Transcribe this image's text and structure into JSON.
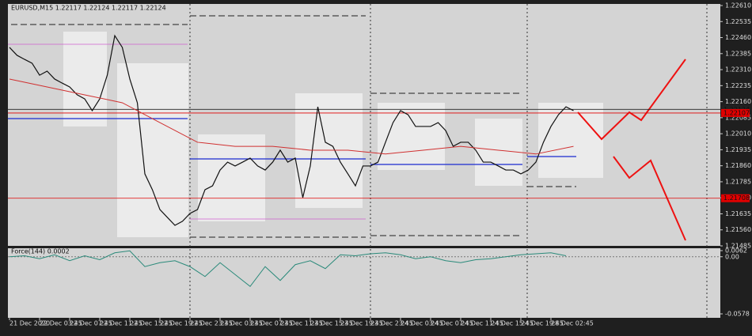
{
  "chart_data": [
    {
      "type": "line",
      "title": "EURUSD,M15  1.22117 1.22124 1.22117 1.22124",
      "xlim": [
        0,
        94
      ],
      "xticks": [
        {
          "value": 0,
          "label": "21 Dec 2020"
        },
        {
          "value": 4,
          "label": "22 Dec 03:45"
        },
        {
          "value": 8,
          "label": "22 Dec 07:45"
        },
        {
          "value": 12,
          "label": "22 Dec 11:45"
        },
        {
          "value": 16,
          "label": "22 Dec 15:45"
        },
        {
          "value": 20,
          "label": "22 Dec 19:45"
        },
        {
          "value": 24,
          "label": "22 Dec 23:45"
        },
        {
          "value": 28,
          "label": "23 Dec 03:45"
        },
        {
          "value": 32,
          "label": "23 Dec 07:45"
        },
        {
          "value": 36,
          "label": "23 Dec 11:45"
        },
        {
          "value": 40,
          "label": "23 Dec 15:45"
        },
        {
          "value": 44,
          "label": "23 Dec 19:45"
        },
        {
          "value": 48,
          "label": "23 Dec 23:45"
        },
        {
          "value": 52,
          "label": "24 Dec 03:45"
        },
        {
          "value": 56,
          "label": "24 Dec 07:45"
        },
        {
          "value": 60,
          "label": "24 Dec 11:45"
        },
        {
          "value": 64,
          "label": "24 Dec 15:45"
        },
        {
          "value": 68,
          "label": "24 Dec 19:45"
        },
        {
          "value": 72,
          "label": "28 Dec 02:45"
        }
      ],
      "ylim": [
        1.21485,
        1.2261
      ],
      "yticks": [
        {
          "value": 1.2261,
          "label": "1.22610"
        },
        1.22535,
        {
          "value": 1.2246,
          "label": "1.22460"
        },
        1.22385,
        {
          "value": 1.2231,
          "label": "1.22310"
        },
        1.22235,
        {
          "value": 1.2216,
          "label": "1.22160"
        },
        1.22085,
        {
          "value": 1.2201,
          "label": "1.22010"
        },
        1.21935,
        {
          "value": 1.2186,
          "label": "1.21860"
        },
        1.21785,
        {
          "value": 1.2171,
          "label": "1.21710"
        },
        1.21635,
        {
          "value": 1.2156,
          "label": "1.21560"
        },
        1.21485
      ],
      "hlines": [
        {
          "value": 1.22124,
          "color": "#222222"
        },
        {
          "value": 1.22107,
          "color": "#e00000"
        },
        {
          "value": 1.21708,
          "color": "#e00000"
        }
      ],
      "series": [
        {
          "name": "EURUSD",
          "color": "#111111",
          "x": [
            0,
            1,
            2,
            3,
            4,
            5,
            6,
            7,
            8,
            9,
            10,
            11,
            12,
            13,
            14,
            15,
            16,
            17,
            18,
            19,
            20,
            21,
            22,
            23,
            24,
            25,
            26,
            27,
            28,
            29,
            30,
            31,
            32,
            33,
            34,
            35,
            36,
            37,
            38,
            39,
            40,
            41,
            42,
            43,
            44,
            45,
            46,
            47,
            48,
            49,
            50,
            51,
            52,
            53,
            54,
            55,
            56,
            57,
            58,
            59,
            60,
            61,
            62,
            63,
            64,
            65,
            66,
            67,
            68,
            69,
            70,
            71,
            72,
            73,
            74,
            75
          ],
          "values": [
            1.22414,
            1.22377,
            1.22358,
            1.2234,
            1.22284,
            1.22303,
            1.22266,
            1.22247,
            1.22229,
            1.22192,
            1.22173,
            1.22118,
            1.22173,
            1.22284,
            1.22469,
            1.22414,
            1.22266,
            1.22155,
            1.21822,
            1.21748,
            1.21655,
            1.21618,
            1.21581,
            1.216,
            1.21637,
            1.21655,
            1.21748,
            1.21766,
            1.2184,
            1.21877,
            1.21859,
            1.21877,
            1.21896,
            1.21859,
            1.2184,
            1.21877,
            1.21933,
            1.21877,
            1.21896,
            1.21711,
            1.21859,
            1.22136,
            1.2197,
            1.21951,
            1.21877,
            1.21822,
            1.21766,
            1.21859,
            1.21859,
            1.21877,
            1.2197,
            1.22062,
            1.22118,
            1.22099,
            1.22044,
            1.22044,
            1.22044,
            1.22062,
            1.22025,
            1.21951,
            1.2197,
            1.2197,
            1.21933,
            1.21877,
            1.21877,
            1.21859,
            1.2184,
            1.2184,
            1.21822,
            1.2184,
            1.21877,
            1.2197,
            1.22044,
            1.22099,
            1.22136,
            1.22118
          ]
        },
        {
          "name": "MA",
          "color": "#d03030",
          "x": [
            0,
            5,
            10,
            15,
            20,
            25,
            30,
            35,
            40,
            45,
            50,
            55,
            60,
            65,
            70,
            75
          ],
          "values": [
            1.22266,
            1.22229,
            1.22192,
            1.22155,
            1.22062,
            1.2197,
            1.21951,
            1.21951,
            1.21933,
            1.21933,
            1.21915,
            1.21933,
            1.21951,
            1.21933,
            1.21915,
            1.21951
          ]
        }
      ]
    },
    {
      "type": "line",
      "title": "Force(144) 0.0002",
      "xlim": [
        0,
        94
      ],
      "ylim": [
        -0.0578,
        0.0062
      ],
      "yticks": [
        0.0062,
        {
          "value": 0,
          "label": "0.00"
        },
        -0.0578
      ],
      "series": [
        {
          "name": "Force",
          "color": "#2a8a7a",
          "x": [
            0,
            2,
            4,
            6,
            8,
            10,
            12,
            14,
            16,
            18,
            20,
            22,
            24,
            26,
            28,
            30,
            32,
            34,
            36,
            38,
            40,
            42,
            44,
            46,
            48,
            50,
            52,
            54,
            56,
            58,
            60,
            62,
            64,
            66,
            68,
            70,
            72,
            74
          ],
          "values": [
            0,
            0.001,
            -0.002,
            0.002,
            -0.004,
            0.001,
            -0.003,
            0.004,
            0.006,
            -0.01,
            -0.006,
            -0.004,
            -0.01,
            -0.02,
            -0.006,
            -0.018,
            -0.03,
            -0.01,
            -0.024,
            -0.008,
            -0.004,
            -0.012,
            0.002,
            0.001,
            0.003,
            0.004,
            0.002,
            -0.002,
            0,
            -0.004,
            -0.006,
            -0.003,
            -0.002,
            0,
            0.002,
            0.003,
            0.004,
            0.001
          ]
        }
      ]
    }
  ]
}
